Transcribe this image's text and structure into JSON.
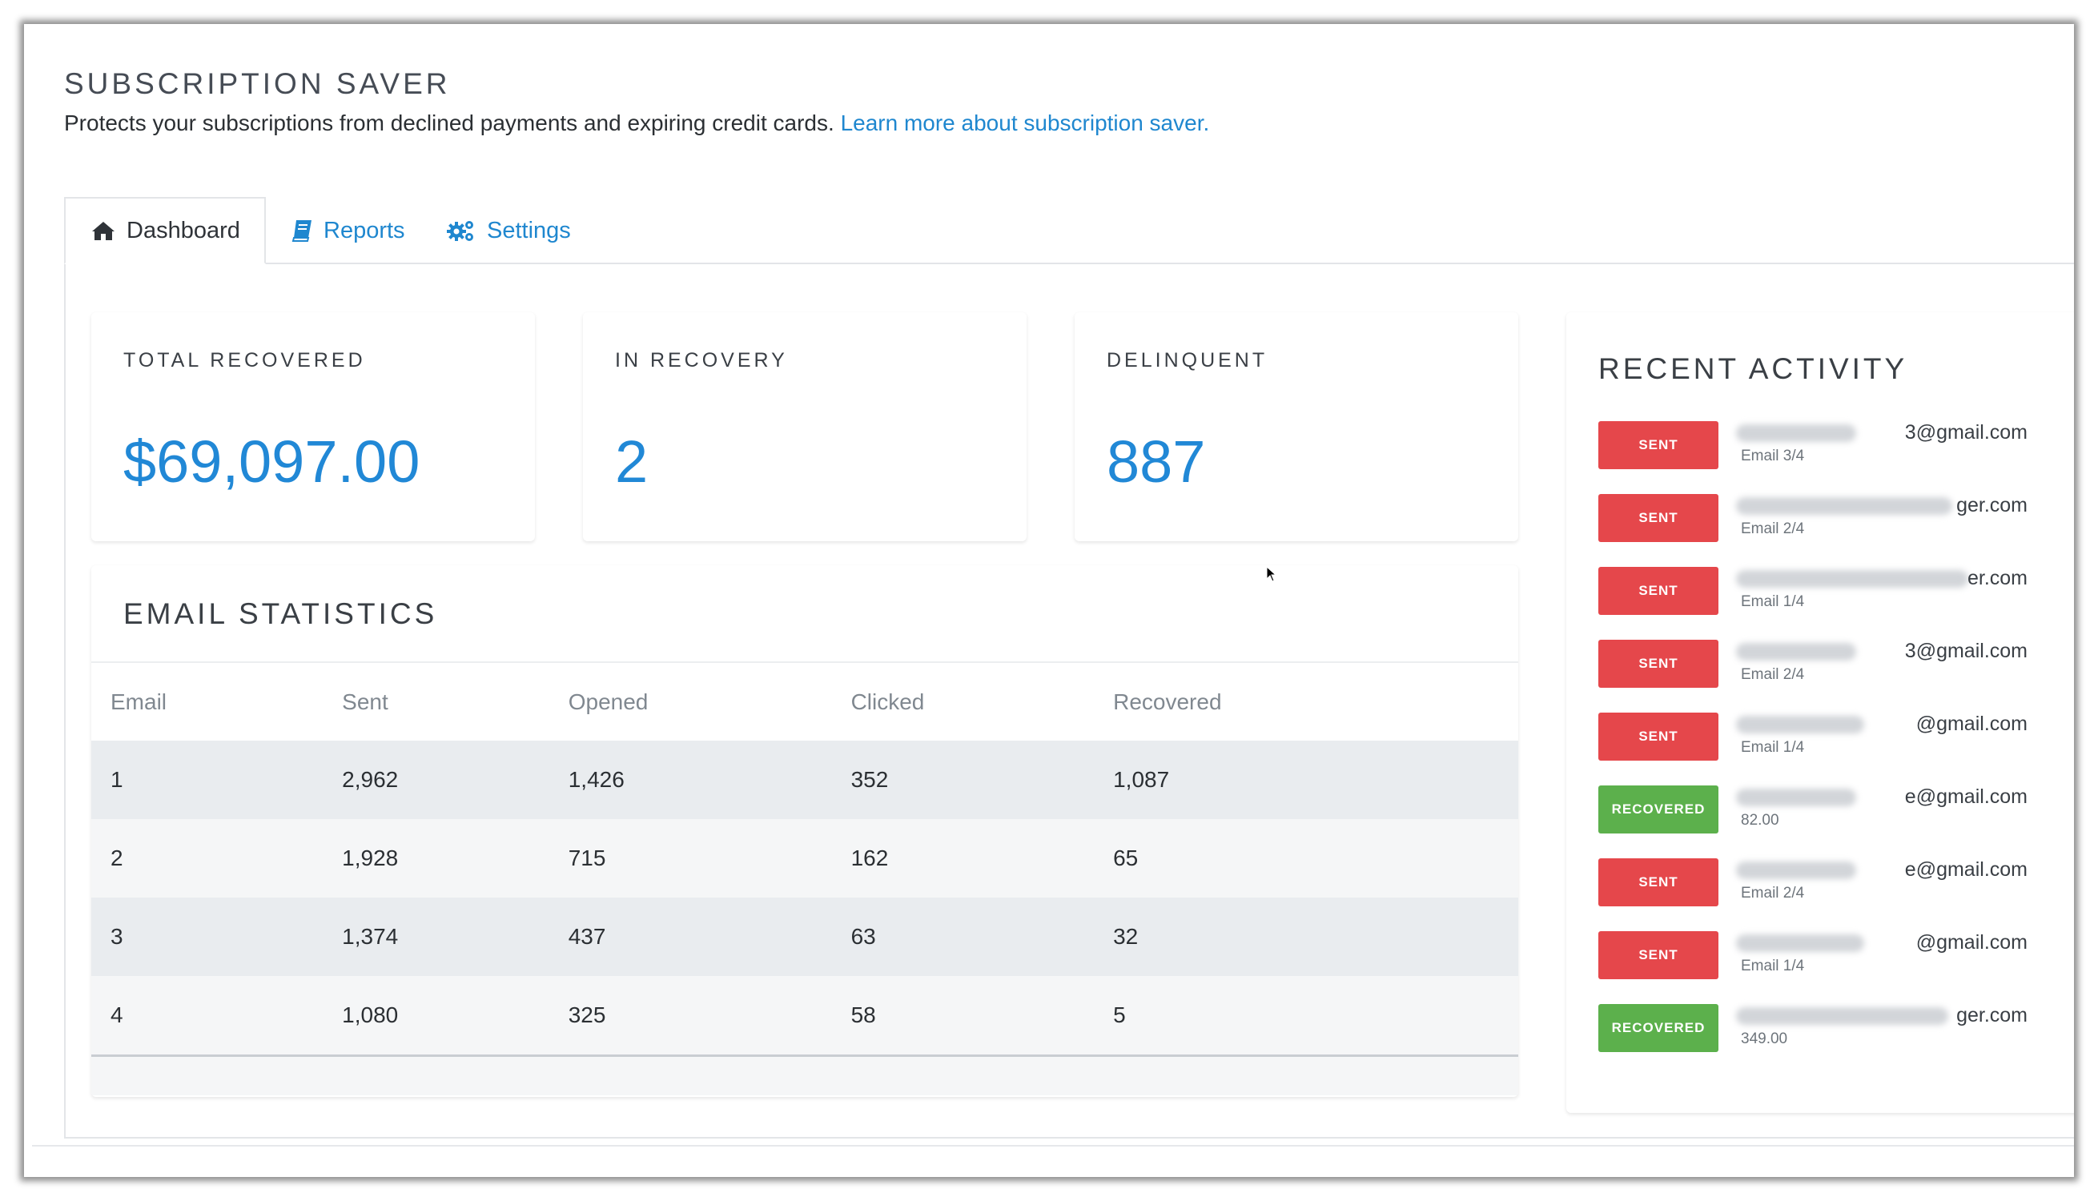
{
  "header": {
    "title": "SUBSCRIPTION SAVER",
    "description": "Protects your subscriptions from declined payments and expiring credit cards.",
    "learn_more": "Learn more about subscription saver."
  },
  "tabs": [
    {
      "label": "Dashboard",
      "icon": "home-icon",
      "active": true
    },
    {
      "label": "Reports",
      "icon": "book-icon",
      "active": false
    },
    {
      "label": "Settings",
      "icon": "gears-icon",
      "active": false
    }
  ],
  "stats": [
    {
      "label": "TOTAL RECOVERED",
      "value": "$69,097.00"
    },
    {
      "label": "IN RECOVERY",
      "value": "2"
    },
    {
      "label": "DELINQUENT",
      "value": "887"
    }
  ],
  "email_statistics": {
    "title": "EMAIL STATISTICS",
    "columns": [
      "Email",
      "Sent",
      "Opened",
      "Clicked",
      "Recovered"
    ],
    "rows": [
      [
        "1",
        "2,962",
        "1,426",
        "352",
        "1,087"
      ],
      [
        "2",
        "1,928",
        "715",
        "162",
        "65"
      ],
      [
        "3",
        "1,374",
        "437",
        "63",
        "32"
      ],
      [
        "4",
        "1,080",
        "325",
        "58",
        "5"
      ]
    ]
  },
  "recent_activity": {
    "title": "RECENT ACTIVITY",
    "items": [
      {
        "status": "SENT",
        "email": "3@gmail.com",
        "meta": "Email 3/4"
      },
      {
        "status": "SENT",
        "email": "ger.com",
        "meta": "Email 2/4"
      },
      {
        "status": "SENT",
        "email": "er.com",
        "meta": "Email 1/4"
      },
      {
        "status": "SENT",
        "email": "3@gmail.com",
        "meta": "Email 2/4"
      },
      {
        "status": "SENT",
        "email": "@gmail.com",
        "meta": "Email 1/4"
      },
      {
        "status": "RECOVERED",
        "email": "e@gmail.com",
        "meta": "82.00"
      },
      {
        "status": "SENT",
        "email": "e@gmail.com",
        "meta": "Email 2/4"
      },
      {
        "status": "SENT",
        "email": "@gmail.com",
        "meta": "Email 1/4"
      },
      {
        "status": "RECOVERED",
        "email": "ger.com",
        "meta": "349.00"
      }
    ]
  },
  "colors": {
    "accent": "#2188d6",
    "link": "#1f87cf",
    "sent_badge": "#e5474b",
    "recovered_badge": "#5cb04c"
  }
}
